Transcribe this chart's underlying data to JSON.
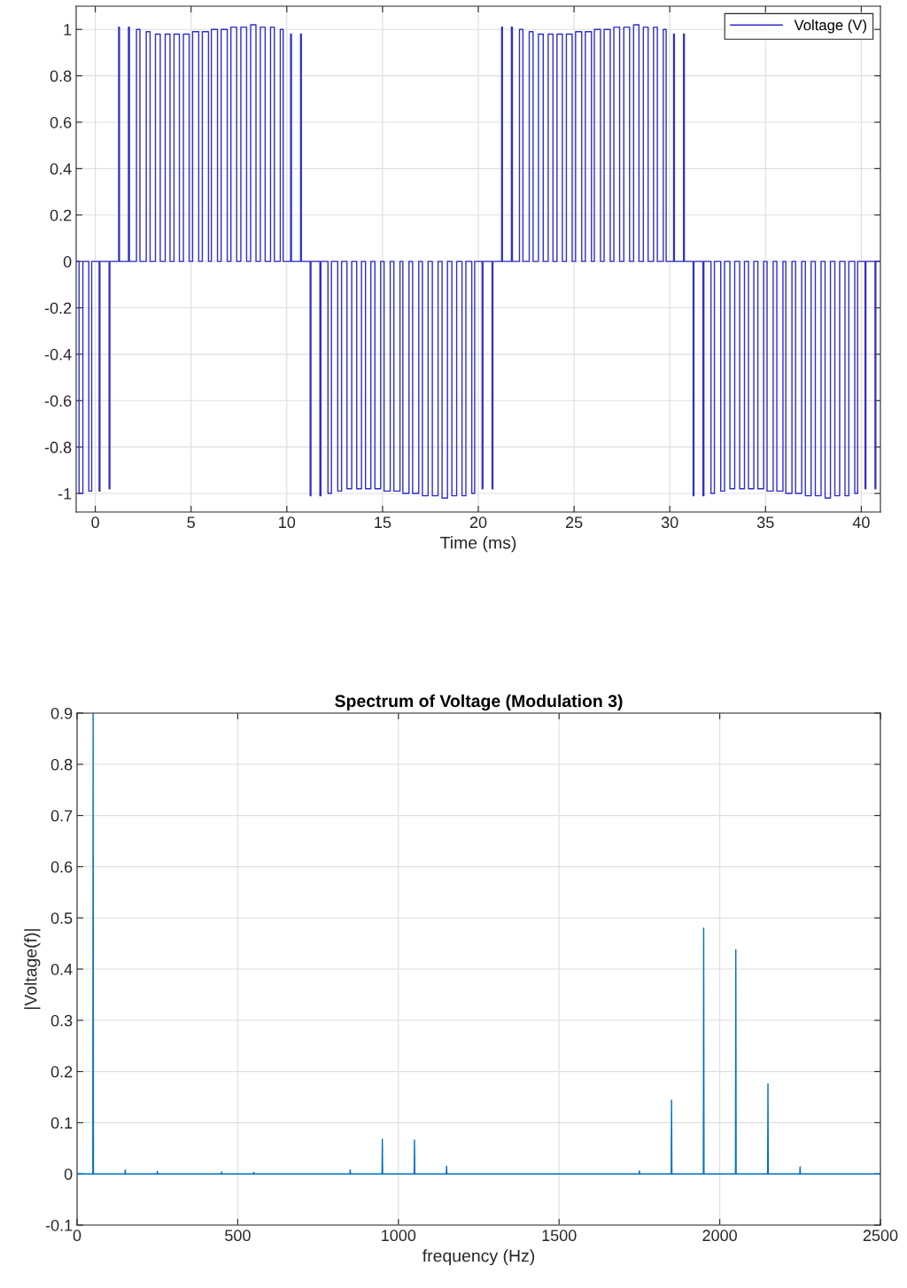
{
  "chart_data": [
    {
      "type": "line",
      "xlabel": "Time (ms)",
      "xlim": [
        -1,
        41
      ],
      "ylim": [
        -1.08,
        1.1
      ],
      "xticks": [
        0,
        5,
        10,
        15,
        20,
        25,
        30,
        35,
        40
      ],
      "yticks": [
        -1,
        -0.8,
        -0.6,
        -0.4,
        -0.2,
        0,
        0.2,
        0.4,
        0.6,
        0.8,
        1
      ],
      "grid": true,
      "legend": "top right",
      "marker": "none",
      "line_style": "solid",
      "series": [
        {
          "name": "Voltage (V)",
          "color": "#2e2ecc",
          "x": [
            -1,
            -0.85,
            -0.85,
            -0.65,
            -0.65,
            -0.34,
            -0.34,
            -0.19,
            -0.19,
            0.2,
            0.2,
            0.24,
            0.24,
            0.72,
            0.72,
            0.76,
            0.76,
            1.22,
            1.22,
            1.26,
            1.26,
            1.73,
            1.73,
            1.78,
            1.78,
            2.15,
            2.15,
            2.33,
            2.33,
            2.66,
            2.66,
            2.86,
            2.86,
            3.14,
            3.14,
            3.39,
            3.39,
            3.65,
            3.65,
            3.9,
            3.9,
            4.11,
            4.11,
            4.39,
            4.39,
            4.6,
            4.6,
            4.9,
            4.9,
            5.08,
            5.08,
            5.4,
            5.4,
            5.59,
            5.59,
            5.91,
            5.91,
            6.06,
            6.06,
            6.38,
            6.38,
            6.57,
            6.57,
            6.89,
            6.89,
            7.08,
            7.08,
            7.38,
            7.38,
            7.6,
            7.6,
            7.9,
            7.9,
            8.11,
            8.11,
            8.39,
            8.39,
            8.62,
            8.62,
            8.87,
            8.87,
            9.15,
            9.15,
            9.35,
            9.35,
            9.66,
            9.66,
            9.81,
            9.81,
            10.2,
            10.2,
            10.24,
            10.24,
            10.72,
            10.72,
            10.76,
            10.76,
            11.22,
            11.22,
            11.26,
            11.26,
            11.73,
            11.73,
            11.78,
            11.78,
            12.15,
            12.15,
            12.33,
            12.33,
            12.66,
            12.66,
            12.86,
            12.86,
            13.14,
            13.14,
            13.39,
            13.39,
            13.65,
            13.65,
            13.9,
            13.9,
            14.11,
            14.11,
            14.39,
            14.39,
            14.6,
            14.6,
            14.9,
            14.9,
            15.08,
            15.08,
            15.4,
            15.4,
            15.59,
            15.59,
            15.91,
            15.91,
            16.06,
            16.06,
            16.38,
            16.38,
            16.57,
            16.57,
            16.89,
            16.89,
            17.08,
            17.08,
            17.38,
            17.38,
            17.6,
            17.6,
            17.9,
            17.9,
            18.11,
            18.11,
            18.39,
            18.39,
            18.62,
            18.62,
            18.87,
            18.87,
            19.15,
            19.15,
            19.35,
            19.35,
            19.66,
            19.66,
            19.81,
            19.81,
            20.2,
            20.2,
            20.24,
            20.24,
            20.72,
            20.72,
            20.76,
            20.76,
            21.22,
            21.22,
            21.26,
            21.26,
            21.73,
            21.73,
            21.78,
            21.78,
            22.15,
            22.15,
            22.33,
            22.33,
            22.66,
            22.66,
            22.86,
            22.86,
            23.14,
            23.14,
            23.39,
            23.39,
            23.65,
            23.65,
            23.9,
            23.9,
            24.11,
            24.11,
            24.39,
            24.39,
            24.6,
            24.6,
            24.9,
            24.9,
            25.08,
            25.08,
            25.4,
            25.4,
            25.59,
            25.59,
            25.91,
            25.91,
            26.06,
            26.06,
            26.38,
            26.38,
            26.57,
            26.57,
            26.89,
            26.89,
            27.08,
            27.08,
            27.38,
            27.38,
            27.6,
            27.6,
            27.9,
            27.9,
            28.11,
            28.11,
            28.39,
            28.39,
            28.62,
            28.62,
            28.87,
            28.87,
            29.15,
            29.15,
            29.35,
            29.35,
            29.66,
            29.66,
            29.81,
            29.81,
            30.2,
            30.2,
            30.24,
            30.24,
            30.72,
            30.72,
            30.76,
            30.76,
            31.22,
            31.22,
            31.26,
            31.26,
            31.73,
            31.73,
            31.78,
            31.78,
            32.15,
            32.15,
            32.33,
            32.33,
            32.66,
            32.66,
            32.86,
            32.86,
            33.14,
            33.14,
            33.39,
            33.39,
            33.65,
            33.65,
            33.9,
            33.9,
            34.11,
            34.11,
            34.39,
            34.39,
            34.6,
            34.6,
            34.9,
            34.9,
            35.08,
            35.08,
            35.4,
            35.4,
            35.59,
            35.59,
            35.91,
            35.91,
            36.06,
            36.06,
            36.38,
            36.38,
            36.57,
            36.57,
            36.89,
            36.89,
            37.08,
            37.08,
            37.38,
            37.38,
            37.6,
            37.6,
            37.9,
            37.9,
            38.11,
            38.11,
            38.39,
            38.39,
            38.62,
            38.62,
            38.87,
            38.87,
            39.15,
            39.15,
            39.35,
            39.35,
            39.66,
            39.66,
            39.81,
            39.81,
            40.2,
            40.2,
            40.24,
            40.24,
            40.72,
            40.72,
            40.76,
            40.76,
            41
          ],
          "values": [
            0,
            0,
            -1.0,
            -1.0,
            0,
            0,
            -0.99,
            -0.99,
            0,
            0,
            -0.99,
            -0.99,
            0,
            0,
            -0.98,
            -0.98,
            0,
            0,
            1.01,
            1.01,
            0,
            0,
            1.01,
            1.01,
            0,
            0,
            1.0,
            1.0,
            0,
            0,
            0.99,
            0.99,
            0,
            0,
            0.98,
            0.98,
            0,
            0,
            0.98,
            0.98,
            0,
            0,
            0.98,
            0.98,
            0,
            0,
            0.98,
            0.98,
            0,
            0,
            0.99,
            0.99,
            0,
            0,
            0.99,
            0.99,
            0,
            0,
            1.0,
            1.0,
            0,
            0,
            1.0,
            1.0,
            0,
            0,
            1.01,
            1.01,
            0,
            0,
            1.01,
            1.01,
            0,
            0,
            1.02,
            1.02,
            0,
            0,
            1.01,
            1.01,
            0,
            0,
            1.01,
            1.01,
            0,
            0,
            1.0,
            1.0,
            0,
            0,
            0.98,
            0.98,
            0,
            0,
            0.98,
            0.98,
            0,
            0,
            -1.01,
            -1.01,
            0,
            0,
            -1.01,
            -1.01,
            0,
            0,
            -1.0,
            -1.0,
            0,
            0,
            -0.99,
            -0.99,
            0,
            0,
            -0.98,
            -0.98,
            0,
            0,
            -0.98,
            -0.98,
            0,
            0,
            -0.98,
            -0.98,
            0,
            0,
            -0.98,
            -0.98,
            0,
            0,
            -0.99,
            -0.99,
            0,
            0,
            -0.99,
            -0.99,
            0,
            0,
            -1.0,
            -1.0,
            0,
            0,
            -1.0,
            -1.0,
            0,
            0,
            -1.01,
            -1.01,
            0,
            0,
            -1.01,
            -1.01,
            0,
            0,
            -1.02,
            -1.02,
            0,
            0,
            -1.01,
            -1.01,
            0,
            0,
            -1.01,
            -1.01,
            0,
            0,
            -1.0,
            -1.0,
            0,
            0,
            -0.98,
            -0.98,
            0,
            0,
            -0.98,
            -0.98,
            0,
            0,
            1.01,
            1.01,
            0,
            0,
            1.01,
            1.01,
            0,
            0,
            1.0,
            1.0,
            0,
            0,
            0.99,
            0.99,
            0,
            0,
            0.98,
            0.98,
            0,
            0,
            0.98,
            0.98,
            0,
            0,
            0.98,
            0.98,
            0,
            0,
            0.98,
            0.98,
            0,
            0,
            0.99,
            0.99,
            0,
            0,
            0.99,
            0.99,
            0,
            0,
            1.0,
            1.0,
            0,
            0,
            1.0,
            1.0,
            0,
            0,
            1.01,
            1.01,
            0,
            0,
            1.01,
            1.01,
            0,
            0,
            1.02,
            1.02,
            0,
            0,
            1.01,
            1.01,
            0,
            0,
            1.01,
            1.01,
            0,
            0,
            1.0,
            1.0,
            0,
            0,
            0.98,
            0.98,
            0,
            0,
            0.98,
            0.98,
            0,
            0,
            -1.01,
            -1.01,
            0,
            0,
            -1.01,
            -1.01,
            0,
            0,
            -1.0,
            -1.0,
            0,
            0,
            -0.99,
            -0.99,
            0,
            0,
            -0.98,
            -0.98,
            0,
            0,
            -0.98,
            -0.98,
            0,
            0,
            -0.98,
            -0.98,
            0,
            0,
            -0.98,
            -0.98,
            0,
            0,
            -0.99,
            -0.99,
            0,
            0,
            -0.99,
            -0.99,
            0,
            0,
            -1.0,
            -1.0,
            0,
            0,
            -1.0,
            -1.0,
            0,
            0,
            -1.01,
            -1.01,
            0,
            0,
            -1.01,
            -1.01,
            0,
            0,
            -1.02,
            -1.02,
            0,
            0,
            -1.01,
            -1.01,
            0,
            0,
            -1.01,
            -1.01,
            0,
            0,
            -1.0,
            -1.0,
            0,
            0,
            -0.98,
            -0.98,
            0,
            0,
            -0.98,
            -0.98,
            0,
            0
          ]
        }
      ]
    },
    {
      "type": "line",
      "title": "Spectrum of Voltage (Modulation 3)",
      "xlabel": "frequency (Hz)",
      "ylabel": "|Voltage(f)|",
      "xlim": [
        0,
        2500
      ],
      "ylim": [
        -0.1,
        0.9
      ],
      "xticks": [
        0,
        500,
        1000,
        1500,
        2000,
        2500
      ],
      "yticks": [
        -0.1,
        0,
        0.1,
        0.2,
        0.3,
        0.4,
        0.5,
        0.6,
        0.7,
        0.8,
        0.9
      ],
      "grid": true,
      "marker": "none",
      "line_style": "solid",
      "series": [
        {
          "color": "#0072bd",
          "x": [
            0,
            49,
            50,
            51,
            149,
            150,
            151,
            249,
            250,
            251,
            449,
            450,
            451,
            549,
            550,
            551,
            849,
            850,
            851,
            949,
            950,
            951,
            1049,
            1050,
            1051,
            1149,
            1150,
            1151,
            1749,
            1750,
            1751,
            1849,
            1850,
            1851,
            1949,
            1950,
            1951,
            2049,
            2050,
            2051,
            2149,
            2150,
            2151,
            2249,
            2250,
            2251,
            2500
          ],
          "values": [
            0,
            0,
            0.9,
            0,
            0,
            0.008,
            0,
            0,
            0.005,
            0,
            0,
            0.004,
            0,
            0,
            0.003,
            0,
            0,
            0.008,
            0,
            0,
            0.068,
            0,
            0,
            0.066,
            0,
            0,
            0.015,
            0,
            0,
            0.006,
            0,
            0,
            0.144,
            0,
            0,
            0.48,
            0,
            0,
            0.438,
            0,
            0,
            0.176,
            0,
            0,
            0.014,
            0,
            0
          ]
        }
      ]
    }
  ]
}
